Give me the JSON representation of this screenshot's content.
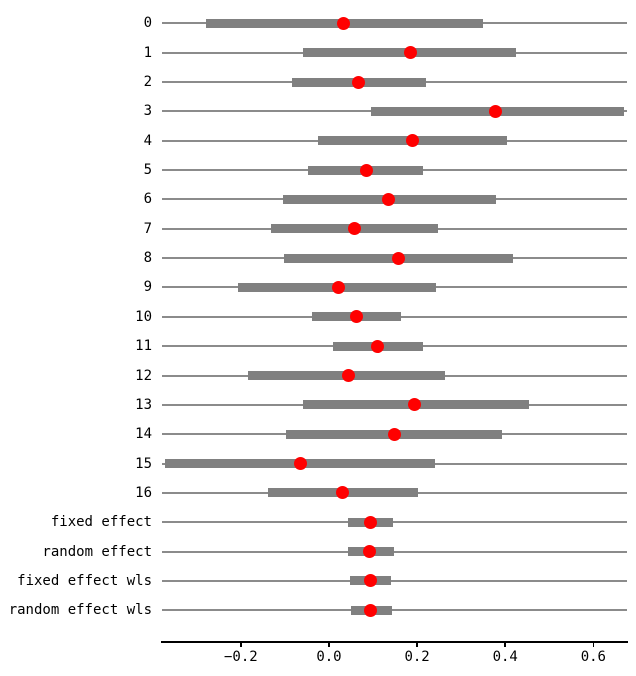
{
  "chart_data": {
    "type": "scatter",
    "subtype": "forest-plot-dot-plot-with-intervals",
    "title": "",
    "xlabel": "",
    "ylabel": "",
    "xlim": [
      -0.379,
      0.677
    ],
    "grid": false,
    "legend": null,
    "x_ticks": [
      {
        "value": -0.2,
        "label": "−0.2"
      },
      {
        "value": 0.0,
        "label": "0.0"
      },
      {
        "value": 0.2,
        "label": "0.2"
      },
      {
        "value": 0.4,
        "label": "0.4"
      },
      {
        "value": 0.6,
        "label": "0.6"
      }
    ],
    "rows": [
      {
        "label": "0",
        "estimate": 0.032,
        "ci_low": -0.28,
        "ci_high": 0.35
      },
      {
        "label": "1",
        "estimate": 0.185,
        "ci_low": -0.058,
        "ci_high": 0.424
      },
      {
        "label": "2",
        "estimate": 0.066,
        "ci_low": -0.084,
        "ci_high": 0.221
      },
      {
        "label": "3",
        "estimate": 0.379,
        "ci_low": 0.096,
        "ci_high": 0.669
      },
      {
        "label": "4",
        "estimate": 0.19,
        "ci_low": -0.024,
        "ci_high": 0.405
      },
      {
        "label": "5",
        "estimate": 0.084,
        "ci_low": -0.047,
        "ci_high": 0.213
      },
      {
        "label": "6",
        "estimate": 0.136,
        "ci_low": -0.105,
        "ci_high": 0.379
      },
      {
        "label": "7",
        "estimate": 0.057,
        "ci_low": -0.131,
        "ci_high": 0.247
      },
      {
        "label": "8",
        "estimate": 0.157,
        "ci_low": -0.103,
        "ci_high": 0.417
      },
      {
        "label": "9",
        "estimate": 0.021,
        "ci_low": -0.206,
        "ci_high": 0.243
      },
      {
        "label": "10",
        "estimate": 0.063,
        "ci_low": -0.039,
        "ci_high": 0.164
      },
      {
        "label": "11",
        "estimate": 0.111,
        "ci_low": 0.01,
        "ci_high": 0.213
      },
      {
        "label": "12",
        "estimate": 0.044,
        "ci_low": -0.184,
        "ci_high": 0.264
      },
      {
        "label": "13",
        "estimate": 0.194,
        "ci_low": -0.059,
        "ci_high": 0.454
      },
      {
        "label": "14",
        "estimate": 0.148,
        "ci_low": -0.097,
        "ci_high": 0.393
      },
      {
        "label": "15",
        "estimate": -0.064,
        "ci_low": -0.372,
        "ci_high": 0.24
      },
      {
        "label": "16",
        "estimate": 0.031,
        "ci_low": -0.139,
        "ci_high": 0.202
      },
      {
        "label": "fixed effect",
        "estimate": 0.095,
        "ci_low": 0.042,
        "ci_high": 0.145
      },
      {
        "label": "random effect",
        "estimate": 0.093,
        "ci_low": 0.042,
        "ci_high": 0.148
      },
      {
        "label": "fixed effect wls",
        "estimate": 0.095,
        "ci_low": 0.047,
        "ci_high": 0.14
      },
      {
        "label": "random effect wls",
        "estimate": 0.094,
        "ci_low": 0.05,
        "ci_high": 0.142
      }
    ],
    "colors": {
      "marker": "#ff0000",
      "interval": "#808080",
      "row_line": "#8b8b8b",
      "axis": "#000000",
      "text": "#000000",
      "background": "#ffffff"
    }
  }
}
